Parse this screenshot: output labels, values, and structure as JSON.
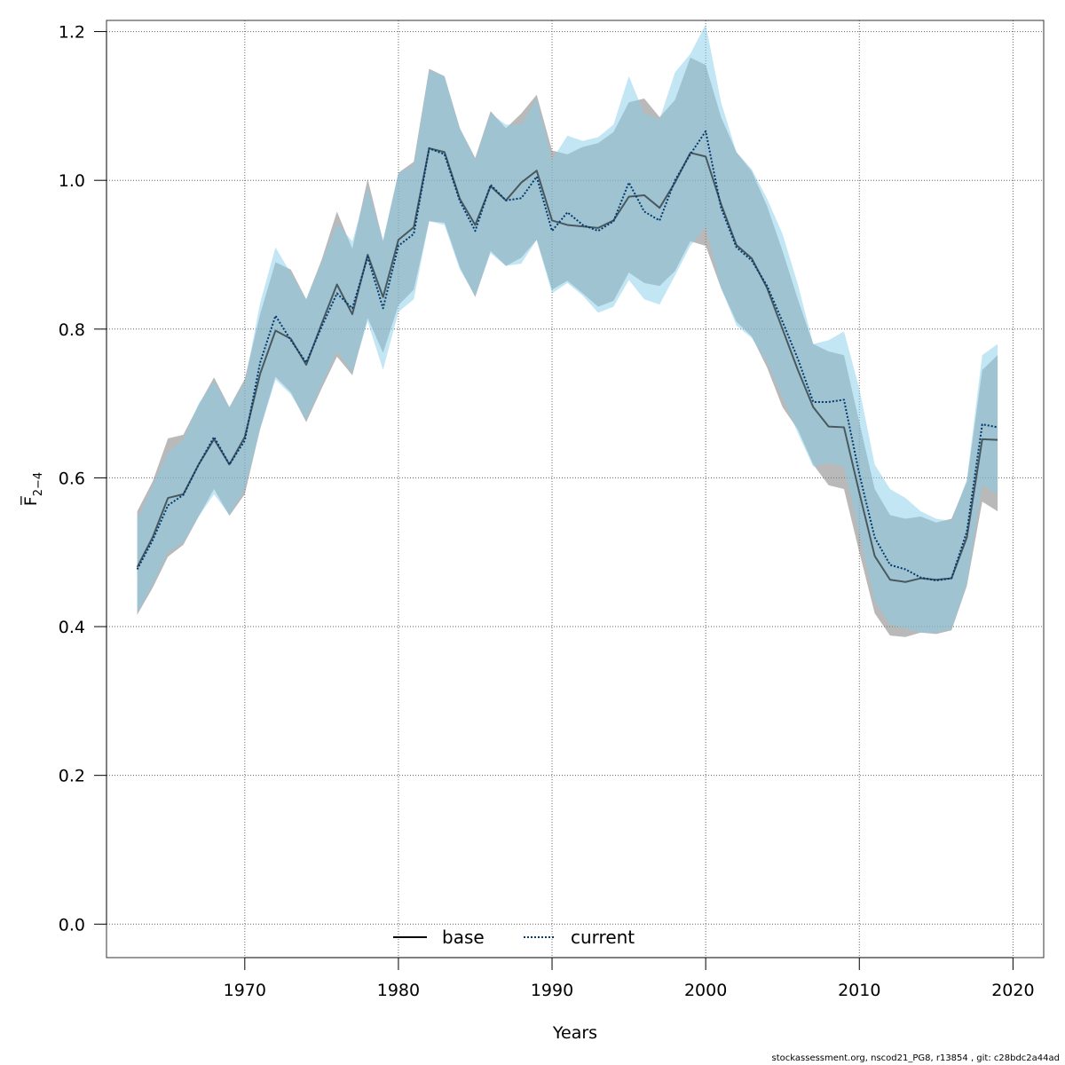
{
  "chart_data": {
    "type": "line",
    "xlabel": "Years",
    "ylabel": "F̅",
    "ylabel_sub": "2−4",
    "xlim": [
      1961,
      2022
    ],
    "ylim": [
      -0.045,
      1.215
    ],
    "x_ticks": [
      1970,
      1980,
      1990,
      2000,
      2010,
      2020
    ],
    "y_ticks": [
      0.0,
      0.2,
      0.4,
      0.6,
      0.8,
      1.0,
      1.2
    ],
    "y_tick_labels": [
      "0.0",
      "0.2",
      "0.4",
      "0.6",
      "0.8",
      "1.0",
      "1.2"
    ],
    "grid": true,
    "legend_position": "bottom-center",
    "x": [
      1963,
      1964,
      1965,
      1966,
      1967,
      1968,
      1969,
      1970,
      1971,
      1972,
      1973,
      1974,
      1975,
      1976,
      1977,
      1978,
      1979,
      1980,
      1981,
      1982,
      1983,
      1984,
      1985,
      1986,
      1987,
      1988,
      1989,
      1990,
      1991,
      1992,
      1993,
      1994,
      1995,
      1996,
      1997,
      1998,
      1999,
      2000,
      2001,
      2002,
      2003,
      2004,
      2005,
      2006,
      2007,
      2008,
      2009,
      2010,
      2011,
      2012,
      2013,
      2014,
      2015,
      2016,
      2017,
      2018,
      2019
    ],
    "series": [
      {
        "name": "base",
        "color": "#000000",
        "band_color": "#808080",
        "style": "solid",
        "values": [
          0.48,
          0.52,
          0.573,
          0.578,
          0.618,
          0.652,
          0.618,
          0.655,
          0.74,
          0.798,
          0.787,
          0.752,
          0.807,
          0.86,
          0.82,
          0.9,
          0.843,
          0.92,
          0.937,
          1.043,
          1.038,
          0.975,
          0.94,
          0.992,
          0.973,
          0.997,
          1.013,
          0.946,
          0.94,
          0.938,
          0.936,
          0.946,
          0.978,
          0.98,
          0.963,
          0.997,
          1.037,
          1.032,
          0.968,
          0.913,
          0.895,
          0.855,
          0.8,
          0.745,
          0.695,
          0.669,
          0.668,
          0.58,
          0.495,
          0.463,
          0.46,
          0.465,
          0.463,
          0.465,
          0.52,
          0.652,
          0.651
        ],
        "lower": [
          0.416,
          0.452,
          0.494,
          0.51,
          0.548,
          0.585,
          0.549,
          0.578,
          0.666,
          0.736,
          0.715,
          0.675,
          0.72,
          0.763,
          0.738,
          0.815,
          0.768,
          0.832,
          0.853,
          0.945,
          0.943,
          0.883,
          0.843,
          0.905,
          0.885,
          0.896,
          0.92,
          0.853,
          0.865,
          0.848,
          0.83,
          0.838,
          0.876,
          0.862,
          0.858,
          0.878,
          0.918,
          0.912,
          0.855,
          0.81,
          0.79,
          0.748,
          0.695,
          0.665,
          0.618,
          0.59,
          0.585,
          0.5,
          0.418,
          0.388,
          0.386,
          0.392,
          0.39,
          0.395,
          0.455,
          0.568,
          0.555
        ],
        "upper": [
          0.555,
          0.595,
          0.653,
          0.658,
          0.698,
          0.735,
          0.695,
          0.733,
          0.82,
          0.89,
          0.88,
          0.84,
          0.893,
          0.958,
          0.908,
          1.002,
          0.918,
          1.01,
          1.025,
          1.15,
          1.14,
          1.07,
          1.03,
          1.093,
          1.07,
          1.09,
          1.115,
          1.04,
          1.035,
          1.045,
          1.05,
          1.065,
          1.105,
          1.11,
          1.085,
          1.108,
          1.165,
          1.155,
          1.085,
          1.038,
          1.012,
          0.965,
          0.905,
          0.84,
          0.78,
          0.77,
          0.765,
          0.675,
          0.585,
          0.55,
          0.545,
          0.548,
          0.54,
          0.545,
          0.595,
          0.745,
          0.765
        ]
      },
      {
        "name": "current",
        "color": "#003a6e",
        "band_color": "#87ceeb",
        "style": "dotted",
        "values": [
          0.477,
          0.516,
          0.563,
          0.577,
          0.618,
          0.655,
          0.618,
          0.65,
          0.755,
          0.818,
          0.785,
          0.755,
          0.803,
          0.848,
          0.828,
          0.897,
          0.828,
          0.912,
          0.928,
          1.043,
          1.035,
          0.972,
          0.932,
          0.994,
          0.973,
          0.976,
          1.005,
          0.932,
          0.957,
          0.94,
          0.932,
          0.945,
          0.997,
          0.958,
          0.946,
          1.0,
          1.035,
          1.066,
          0.963,
          0.91,
          0.892,
          0.858,
          0.81,
          0.76,
          0.702,
          0.702,
          0.705,
          0.605,
          0.52,
          0.483,
          0.477,
          0.466,
          0.462,
          0.465,
          0.528,
          0.672,
          0.668
        ],
        "lower": [
          0.418,
          0.456,
          0.5,
          0.513,
          0.548,
          0.578,
          0.55,
          0.585,
          0.665,
          0.732,
          0.712,
          0.678,
          0.725,
          0.77,
          0.742,
          0.81,
          0.745,
          0.823,
          0.84,
          0.945,
          0.94,
          0.88,
          0.845,
          0.902,
          0.885,
          0.888,
          0.92,
          0.848,
          0.862,
          0.845,
          0.822,
          0.83,
          0.866,
          0.84,
          0.833,
          0.872,
          0.912,
          0.938,
          0.855,
          0.805,
          0.788,
          0.755,
          0.708,
          0.66,
          0.615,
          0.62,
          0.615,
          0.525,
          0.435,
          0.402,
          0.398,
          0.392,
          0.392,
          0.397,
          0.458,
          0.59,
          0.578
        ],
        "upper": [
          0.545,
          0.59,
          0.634,
          0.652,
          0.7,
          0.73,
          0.695,
          0.728,
          0.835,
          0.91,
          0.875,
          0.84,
          0.89,
          0.942,
          0.918,
          0.99,
          0.92,
          1.01,
          1.02,
          1.148,
          1.14,
          1.07,
          1.028,
          1.09,
          1.075,
          1.075,
          1.11,
          1.028,
          1.06,
          1.053,
          1.058,
          1.075,
          1.14,
          1.09,
          1.082,
          1.145,
          1.17,
          1.21,
          1.105,
          1.038,
          1.015,
          0.975,
          0.928,
          0.86,
          0.78,
          0.785,
          0.797,
          0.72,
          0.618,
          0.585,
          0.573,
          0.555,
          0.545,
          0.542,
          0.598,
          0.765,
          0.78
        ]
      }
    ]
  },
  "footer_text": "stockassessment.org, nscod21_PG8, r13854 , git: c28bdc2a44ad"
}
